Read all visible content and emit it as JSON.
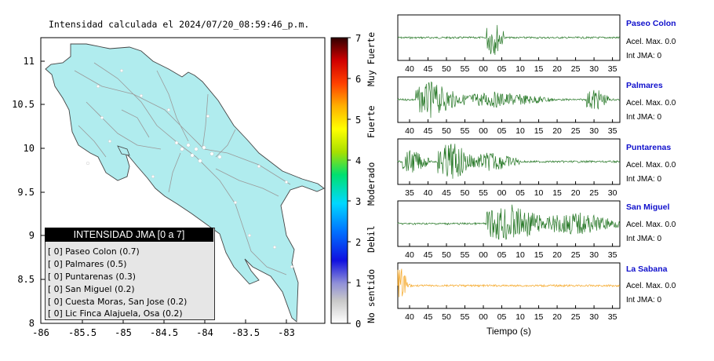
{
  "map": {
    "title": "Intensidad calculada el 2024/07/20_08:59:46_p.m.",
    "yticks": [
      "11",
      "10.5",
      "10",
      "9.5",
      "9",
      "8.5",
      "8"
    ],
    "xticks": [
      "-86",
      "-85.5",
      "-85",
      "-84.5",
      "-84",
      "-83.5",
      "-83"
    ],
    "land_color": "#b0ecee"
  },
  "legend": {
    "header": "INTENSIDAD JMA [0 a 7]",
    "items": [
      "[ 0]  Paseo Colon (0.7)",
      "[ 0]  Palmares (0.5)",
      "[ 0]  Puntarenas (0.3)",
      "[ 0]  San Miguel (0.2)",
      "[ 0]  Cuesta Moras, San Jose (0.2)",
      "[ 0]  Lic Finca Alajuela, Osa (0.2)"
    ]
  },
  "colorbar": {
    "ticks": [
      "7",
      "6",
      "5",
      "4",
      "3",
      "2",
      "1",
      "0"
    ],
    "categories": [
      "Muy Fuerte",
      "Fuerte",
      "Moderado",
      "Debil",
      "No sentido"
    ]
  },
  "seismograms": {
    "xlabel": "Tiempo (s)",
    "stations": [
      {
        "name": "Paseo Colon",
        "accel": "Acel. Max. 0.0",
        "jma": "Int JMA: 0",
        "color": "#2a7a2a",
        "ticks": [
          "40",
          "45",
          "50",
          "55",
          "00",
          "05",
          "10",
          "15",
          "20",
          "25",
          "30",
          "35"
        ]
      },
      {
        "name": "Palmares",
        "accel": "Acel. Max. 0.0",
        "jma": "Int JMA: 0",
        "color": "#2a7a2a",
        "ticks": [
          "40",
          "45",
          "50",
          "55",
          "00",
          "05",
          "10",
          "15",
          "20",
          "25",
          "30",
          "35"
        ]
      },
      {
        "name": "Puntarenas",
        "accel": "Acel. Max. 0.0",
        "jma": "Int JMA: 0",
        "color": "#2a7a2a",
        "ticks": [
          "35",
          "40",
          "45",
          "50",
          "55",
          "00",
          "05",
          "10",
          "15",
          "20",
          "25",
          "30"
        ]
      },
      {
        "name": "San Miguel",
        "accel": "Acel. Max. 0.0",
        "jma": "Int JMA: 0",
        "color": "#2a7a2a",
        "ticks": [
          "40",
          "45",
          "50",
          "55",
          "00",
          "05",
          "10",
          "15",
          "20",
          "25",
          "30",
          "35"
        ]
      },
      {
        "name": "La Sabana",
        "accel": "Acel. Max. 0.0",
        "jma": "Int JMA: 0",
        "color": "#f5a623",
        "ticks": [
          "40",
          "45",
          "50",
          "55",
          "00",
          "05",
          "10",
          "15",
          "20",
          "25",
          "30",
          "35"
        ]
      }
    ]
  },
  "chart_data": {
    "type": "heatmap",
    "title": "Intensidad calculada el 2024/07/20_08:59:46_p.m.",
    "xlabel": "",
    "ylabel": "",
    "xlim": [
      -86,
      -82.5
    ],
    "ylim": [
      8,
      11.3
    ],
    "colorbar_range": [
      0,
      7
    ],
    "stations": [
      {
        "name": "Paseo Colon",
        "intensity": 0.7
      },
      {
        "name": "Palmares",
        "intensity": 0.5
      },
      {
        "name": "Puntarenas",
        "intensity": 0.3
      },
      {
        "name": "San Miguel",
        "intensity": 0.2
      },
      {
        "name": "Cuesta Moras, San Jose",
        "intensity": 0.2
      },
      {
        "name": "Lic Finca Alajuela, Osa",
        "intensity": 0.2
      }
    ]
  }
}
